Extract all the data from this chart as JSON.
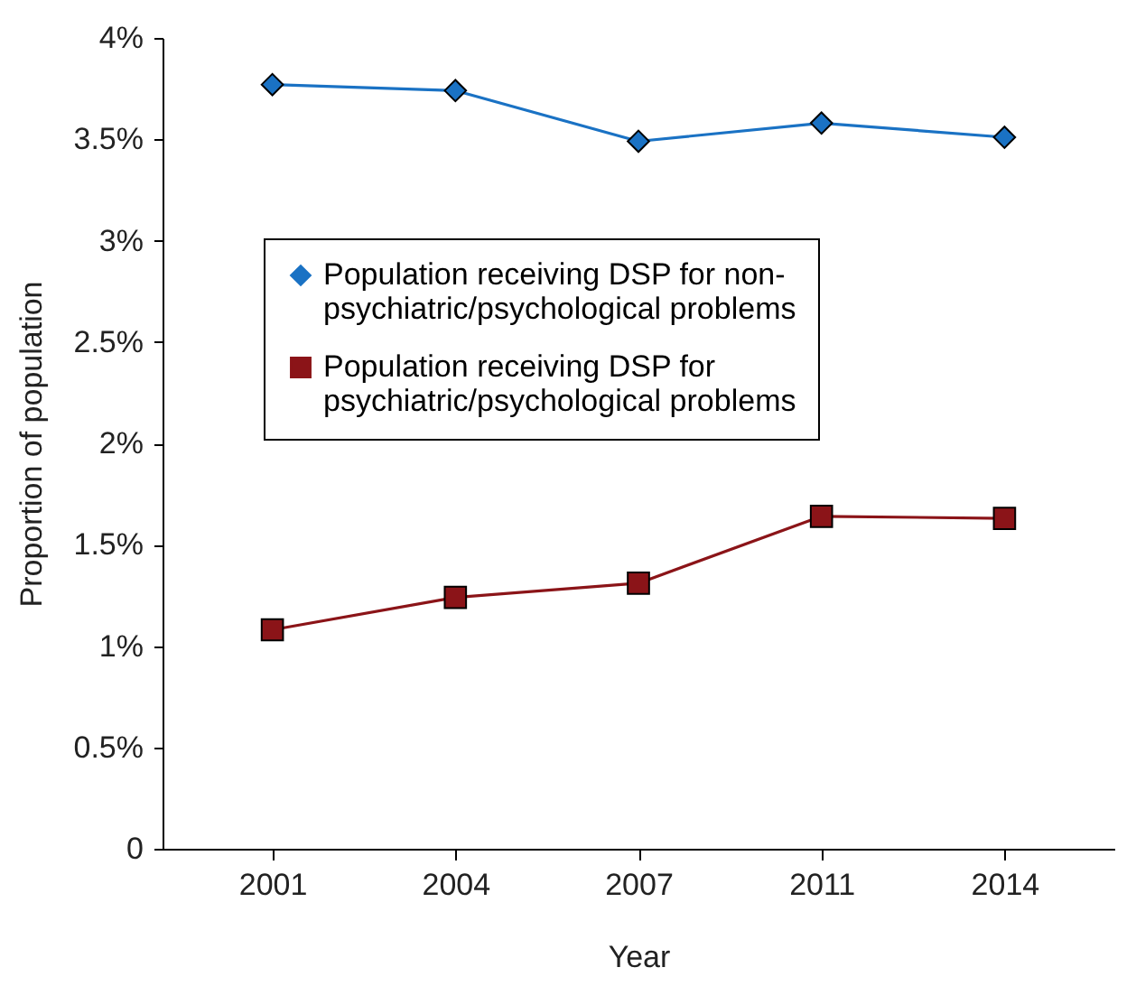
{
  "chart_data": {
    "type": "line",
    "xlabel": "Year",
    "ylabel": "Proportion of population",
    "categories": [
      "2001",
      "2004",
      "2007",
      "2011",
      "2014"
    ],
    "series": [
      {
        "name": "Population receiving DSP for non-psychiatric/psychological problems",
        "color": "#1a72c4",
        "marker": "diamond",
        "values": [
          3.77,
          3.74,
          3.49,
          3.58,
          3.51
        ]
      },
      {
        "name": "Population receiving DSP for psychiatric/psychological problems",
        "color": "#8b1418",
        "marker": "square",
        "values": [
          1.08,
          1.24,
          1.31,
          1.64,
          1.63
        ]
      }
    ],
    "ylim": [
      0,
      4
    ],
    "yticks": [
      0,
      {
        "value": 0.5,
        "label": "0.5%"
      },
      {
        "value": 1,
        "label": "1%"
      },
      {
        "value": 1.5,
        "label": "1.5%"
      },
      {
        "value": 2,
        "label": "2%"
      },
      {
        "value": 2.5,
        "label": "2.5%"
      },
      {
        "value": 3,
        "label": "3%"
      },
      {
        "value": 3.5,
        "label": "3.5%"
      },
      {
        "value": 4,
        "label": "4%"
      }
    ],
    "grid": false,
    "legend": "top left",
    "line_style": "solid"
  }
}
